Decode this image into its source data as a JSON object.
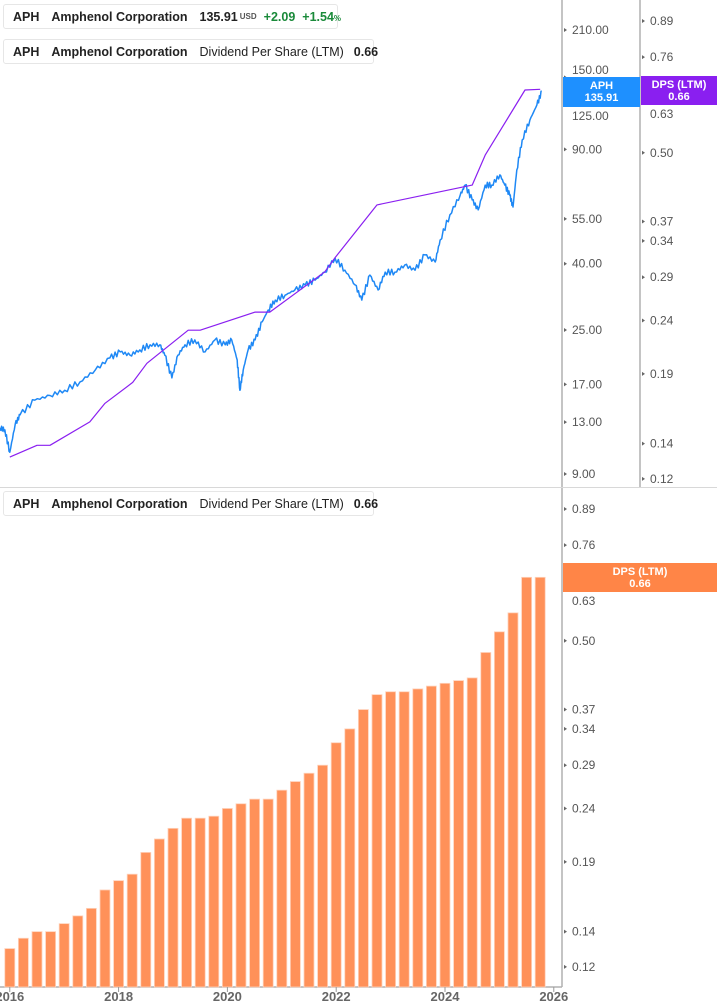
{
  "legends": {
    "price": {
      "ticker": "APH",
      "company": "Amphenol Corporation",
      "price": "135.91",
      "currency": "USD",
      "change": "+2.09",
      "change_pct": "+1.54",
      "pct_sign": "%",
      "color": "#1e88f5"
    },
    "dps_top": {
      "ticker": "APH",
      "company": "Amphenol Corporation",
      "metric": "Dividend Per Share (LTM)",
      "value": "0.66",
      "color": "#8a1ff0"
    },
    "dps_bottom": {
      "ticker": "APH",
      "company": "Amphenol Corporation",
      "metric": "Dividend Per Share (LTM)",
      "value": "0.66",
      "color": "#ff8547"
    }
  },
  "badges": {
    "price": {
      "label": "APH",
      "value": "135.91",
      "color": "#1e90ff"
    },
    "dps_top": {
      "label": "DPS (LTM)",
      "value": "0.66",
      "color": "#8a1ff0"
    },
    "dps_bottom": {
      "label": "DPS (LTM)",
      "value": "0.66",
      "color": "#ff8547"
    }
  },
  "chart_data": [
    {
      "type": "line",
      "scale": "log",
      "series": [
        {
          "axis": "price",
          "color": "#1e88f5",
          "x": [
            2015.82,
            2015.91,
            2016.0,
            2016.1,
            2016.19,
            2016.46,
            2016.74,
            2017.01,
            2017.29,
            2017.57,
            2017.84,
            2018.03,
            2018.21,
            2018.39,
            2018.58,
            2018.76,
            2018.85,
            2018.98,
            2019.09,
            2019.22,
            2019.4,
            2019.59,
            2019.77,
            2019.96,
            2020.08,
            2020.18,
            2020.23,
            2020.29,
            2020.38,
            2020.51,
            2020.64,
            2020.75,
            2020.88,
            2021.06,
            2021.24,
            2021.43,
            2021.61,
            2021.79,
            2021.98,
            2022.16,
            2022.35,
            2022.47,
            2022.62,
            2022.77,
            2022.9,
            2023.08,
            2023.26,
            2023.45,
            2023.63,
            2023.82,
            2023.91,
            2024.09,
            2024.28,
            2024.37,
            2024.5,
            2024.61,
            2024.74,
            2024.86,
            2025.01,
            2025.1,
            2025.19,
            2025.25,
            2025.32,
            2025.42,
            2025.56,
            2025.69,
            2025.78
          ],
          "y": [
            12.5,
            12.3,
            10.5,
            12.8,
            13.7,
            15.2,
            15.7,
            16.3,
            17.3,
            18.8,
            20.5,
            21.4,
            20.9,
            21.7,
            22.5,
            22.5,
            20.9,
            17.8,
            20.9,
            22.5,
            23.3,
            21.4,
            23.3,
            22.5,
            23.3,
            20.2,
            16.3,
            18.8,
            21.7,
            23.3,
            26.5,
            28.8,
            30.9,
            32.0,
            33.2,
            34.4,
            35.6,
            37.7,
            41.6,
            38.2,
            34.4,
            30.9,
            36.9,
            33.2,
            37.7,
            37.7,
            39.6,
            38.2,
            42.6,
            40.5,
            47.3,
            56.6,
            65.1,
            69.9,
            62.9,
            58.6,
            69.9,
            69.9,
            75.1,
            69.9,
            65.1,
            59.8,
            77.8,
            96.3,
            110.9,
            123.4,
            135.9
          ]
        },
        {
          "axis": "dps",
          "color": "#8a1ff0",
          "x": [
            2016.0,
            2016.5,
            2016.74,
            2017.47,
            2017.75,
            2018.26,
            2018.52,
            2019.28,
            2019.5,
            2020.51,
            2020.78,
            2021.79,
            2021.98,
            2022.75,
            2024.5,
            2024.74,
            2025.47,
            2025.75
          ],
          "y": [
            0.132,
            0.139,
            0.139,
            0.154,
            0.167,
            0.183,
            0.199,
            0.23,
            0.23,
            0.249,
            0.249,
            0.297,
            0.316,
            0.398,
            0.434,
            0.495,
            0.658,
            0.66
          ]
        }
      ],
      "price_axis": {
        "ticks": [
          210,
          150,
          125,
          90,
          55,
          40,
          25,
          17,
          13,
          9
        ],
        "tick_labels": [
          "210.00",
          "150.00",
          "125.00",
          "90.00",
          "55.00",
          "40.00",
          "25.00",
          "17.00",
          "13.00",
          "9.00"
        ],
        "range": [
          8.5,
          240
        ]
      },
      "dps_axis": {
        "ticks": [
          0.89,
          0.76,
          0.63,
          0.5,
          0.37,
          0.34,
          0.29,
          0.24,
          0.19,
          0.14,
          0.12
        ],
        "tick_labels": [
          "0.89",
          "0.76",
          "0.63",
          "0.50",
          "0.37",
          "0.34",
          "0.29",
          "0.24",
          "0.19",
          "0.14",
          "0.12"
        ],
        "range": [
          0.118,
          0.975
        ]
      },
      "xlim": [
        2015.82,
        2026.16
      ]
    },
    {
      "type": "bar",
      "scale": "log",
      "color": "#ff9159",
      "x_start": 2016.0,
      "x_step": 0.25,
      "values": [
        0.13,
        0.136,
        0.14,
        0.14,
        0.145,
        0.15,
        0.155,
        0.168,
        0.175,
        0.18,
        0.198,
        0.21,
        0.22,
        0.23,
        0.23,
        0.232,
        0.24,
        0.245,
        0.25,
        0.25,
        0.26,
        0.27,
        0.28,
        0.29,
        0.32,
        0.34,
        0.37,
        0.395,
        0.4,
        0.4,
        0.405,
        0.41,
        0.415,
        0.42,
        0.425,
        0.475,
        0.52,
        0.565,
        0.66,
        0.66
      ],
      "y_axis": {
        "ticks": [
          0.89,
          0.76,
          0.63,
          0.5,
          0.37,
          0.34,
          0.29,
          0.24,
          0.19,
          0.14,
          0.12
        ],
        "tick_labels": [
          "0.89",
          "0.76",
          "0.63",
          "0.50",
          "0.37",
          "0.34",
          "0.29",
          "0.24",
          "0.19",
          "0.14",
          "0.12"
        ]
      },
      "x_ticks": [
        2016,
        2018,
        2020,
        2022,
        2024,
        2026
      ],
      "x_tick_labels": [
        "2016",
        "2018",
        "2020",
        "2022",
        "2024",
        "2026"
      ],
      "xlim": [
        2015.82,
        2026.16
      ]
    }
  ]
}
